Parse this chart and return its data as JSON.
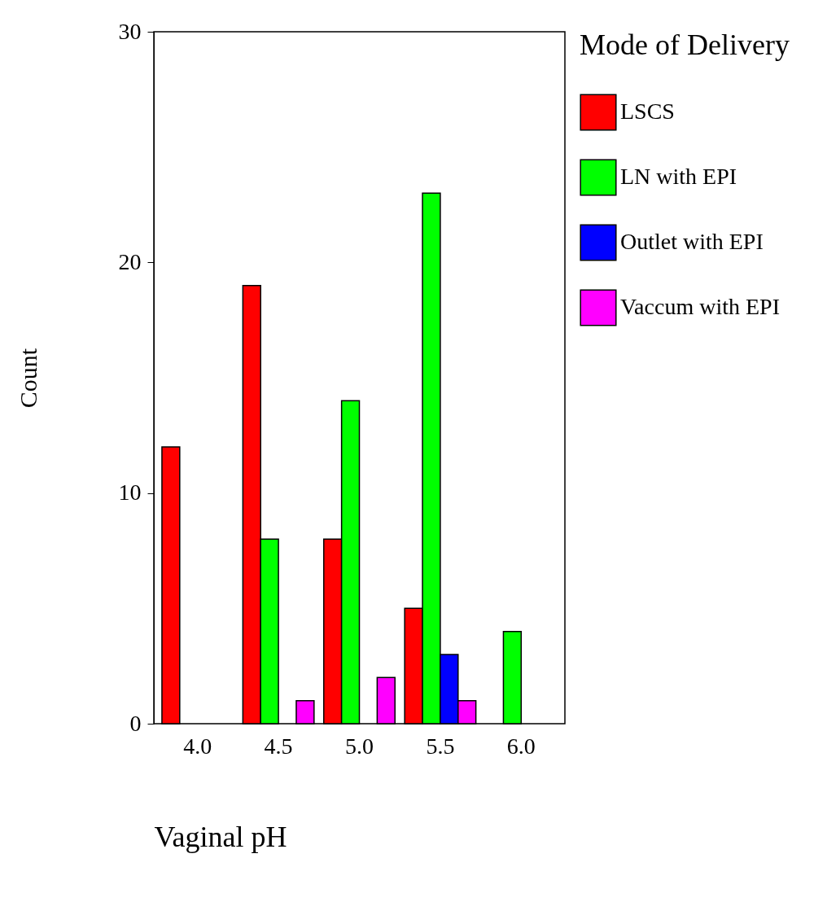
{
  "chart_data": {
    "type": "bar",
    "xlabel": "Vaginal pH",
    "ylabel": "Count",
    "legend_title": "Mode of Delivery",
    "legend": "right",
    "categories": [
      "4.0",
      "4.5",
      "5.0",
      "5.5",
      "6.0"
    ],
    "series": [
      {
        "name": "LSCS",
        "color": "#ff0000",
        "values": [
          12,
          19,
          8,
          5,
          null
        ]
      },
      {
        "name": "LN with EPI",
        "color": "#00ff00",
        "values": [
          null,
          8,
          14,
          23,
          4
        ]
      },
      {
        "name": "Outlet with EPI",
        "color": "#0000ff",
        "values": [
          null,
          null,
          null,
          3,
          null
        ]
      },
      {
        "name": "Vaccum with EPI",
        "color": "#ff00ff",
        "values": [
          null,
          1,
          2,
          1,
          null
        ]
      }
    ],
    "ylim": [
      0,
      30
    ],
    "yticks": [
      0,
      10,
      20,
      30
    ],
    "grid": false
  }
}
